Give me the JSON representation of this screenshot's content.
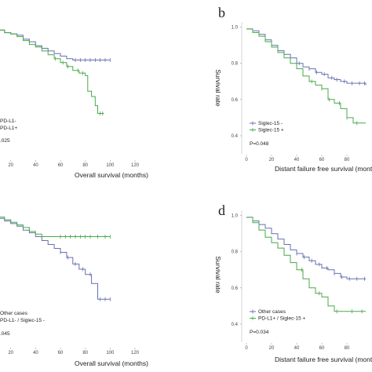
{
  "chart_data": [
    {
      "panel": "a",
      "type": "line",
      "panel_letter": "",
      "xlabel": "Overall survival (months)",
      "ylabel": "",
      "xlim": [
        0,
        120
      ],
      "ylim": [
        0,
        1
      ],
      "x_ticks": [
        "20",
        "40",
        "60",
        "80",
        "100",
        "120"
      ],
      "y_ticks": [],
      "series": [
        {
          "name": "PD-L1-",
          "color": "#6670b0",
          "x": [
            0,
            5,
            10,
            15,
            20,
            25,
            30,
            35,
            40,
            45,
            50,
            55,
            60,
            65,
            70,
            75,
            80,
            85,
            90,
            95,
            100
          ],
          "y": [
            0.99,
            0.97,
            0.95,
            0.93,
            0.92,
            0.91,
            0.88,
            0.86,
            0.83,
            0.81,
            0.79,
            0.77,
            0.75,
            0.73,
            0.72,
            0.72,
            0.72,
            0.72,
            0.72,
            0.72,
            0.72
          ],
          "censor_x": [
            72,
            76,
            80,
            84,
            88,
            92,
            96,
            100
          ]
        },
        {
          "name": "PD-L1+",
          "color": "#49a849",
          "x": [
            0,
            5,
            10,
            15,
            20,
            25,
            30,
            35,
            40,
            45,
            50,
            55,
            60,
            65,
            70,
            75,
            80,
            82,
            85,
            88,
            90,
            95
          ],
          "y": [
            0.99,
            0.97,
            0.95,
            0.93,
            0.92,
            0.9,
            0.87,
            0.84,
            0.82,
            0.79,
            0.76,
            0.73,
            0.7,
            0.67,
            0.64,
            0.62,
            0.6,
            0.48,
            0.44,
            0.37,
            0.31,
            0.31
          ],
          "censor_x": [
            56,
            62,
            66,
            74,
            78,
            92,
            94
          ]
        }
      ],
      "legend": [
        "PD-L1-",
        "PD-L1+"
      ],
      "annotation": ".025"
    },
    {
      "panel": "b",
      "type": "line",
      "panel_letter": "b",
      "xlabel": "Distant failure free survival (month",
      "ylabel": "Survival rate",
      "xlim": [
        0,
        120
      ],
      "ylim": [
        0,
        1
      ],
      "x_ticks": [
        "0",
        "20",
        "40",
        "60",
        "80"
      ],
      "y_ticks": [
        "0.4",
        "0.6",
        "0.8",
        "1.0"
      ],
      "series": [
        {
          "name": "Siglec-15 -",
          "color": "#6670b0",
          "x": [
            0,
            5,
            10,
            15,
            20,
            25,
            30,
            35,
            40,
            45,
            50,
            55,
            60,
            65,
            70,
            75,
            80,
            85,
            90,
            95
          ],
          "y": [
            0.99,
            0.98,
            0.96,
            0.93,
            0.9,
            0.87,
            0.85,
            0.83,
            0.8,
            0.78,
            0.77,
            0.75,
            0.74,
            0.72,
            0.71,
            0.7,
            0.69,
            0.69,
            0.69,
            0.68
          ],
          "censor_x": [
            42,
            50,
            56,
            62,
            68,
            72,
            78,
            84,
            90,
            94
          ]
        },
        {
          "name": "Siglec-15 +",
          "color": "#49a849",
          "x": [
            0,
            5,
            10,
            15,
            20,
            25,
            30,
            35,
            40,
            45,
            50,
            55,
            60,
            65,
            70,
            75,
            80,
            85,
            90,
            95
          ],
          "y": [
            0.99,
            0.97,
            0.95,
            0.92,
            0.89,
            0.86,
            0.83,
            0.8,
            0.77,
            0.73,
            0.7,
            0.68,
            0.66,
            0.6,
            0.58,
            0.55,
            0.5,
            0.47,
            0.47,
            0.47
          ],
          "censor_x": [
            52,
            60,
            66,
            74,
            80,
            88
          ]
        }
      ],
      "legend": [
        "Siglec-15 -",
        "Siglec-15 +"
      ],
      "annotation": "P=0.048"
    },
    {
      "panel": "c",
      "type": "line",
      "panel_letter": "",
      "xlabel": "Overall survival (months)",
      "ylabel": "",
      "xlim": [
        0,
        120
      ],
      "ylim": [
        0,
        1
      ],
      "x_ticks": [
        "20",
        "40",
        "60",
        "80",
        "100",
        "120"
      ],
      "y_ticks": [],
      "series": [
        {
          "name": "Other cases",
          "color": "#6670b0",
          "x": [
            0,
            5,
            10,
            15,
            20,
            25,
            30,
            35,
            40,
            45,
            50,
            55,
            60,
            65,
            70,
            75,
            80,
            85,
            88,
            90,
            95,
            100
          ],
          "y": [
            0.99,
            0.97,
            0.95,
            0.93,
            0.91,
            0.89,
            0.86,
            0.84,
            0.81,
            0.78,
            0.75,
            0.72,
            0.69,
            0.65,
            0.6,
            0.56,
            0.52,
            0.45,
            0.45,
            0.33,
            0.33,
            0.33
          ],
          "censor_x": [
            60,
            66,
            72,
            78,
            84,
            92,
            96,
            100
          ]
        },
        {
          "name": "PD-L1- / Siglec-15 -",
          "color": "#49a849",
          "x": [
            0,
            5,
            10,
            15,
            20,
            25,
            30,
            35,
            40,
            45,
            50,
            55,
            60,
            65,
            70,
            75,
            80,
            85,
            90,
            95,
            100
          ],
          "y": [
            0.99,
            0.98,
            0.96,
            0.94,
            0.92,
            0.9,
            0.88,
            0.85,
            0.83,
            0.81,
            0.81,
            0.81,
            0.81,
            0.81,
            0.81,
            0.81,
            0.81,
            0.81,
            0.81,
            0.81,
            0.81
          ],
          "censor_x": [
            60,
            64,
            68,
            72,
            76,
            80,
            84,
            90,
            96,
            100
          ]
        }
      ],
      "legend": [
        "Other cases",
        "PD-L1- / Siglec-15 -"
      ],
      "annotation": ".045"
    },
    {
      "panel": "d",
      "type": "line",
      "panel_letter": "d",
      "xlabel": "Distant failure free survival (month",
      "ylabel": "Survival rate",
      "xlim": [
        0,
        120
      ],
      "ylim": [
        0,
        1
      ],
      "x_ticks": [
        "0",
        "20",
        "40",
        "60",
        "80"
      ],
      "y_ticks": [
        "0.4",
        "0.6",
        "0.8",
        "1.0"
      ],
      "series": [
        {
          "name": "Other cases",
          "color": "#6670b0",
          "x": [
            0,
            5,
            10,
            15,
            20,
            25,
            30,
            35,
            40,
            45,
            50,
            55,
            60,
            65,
            70,
            75,
            80,
            85,
            90,
            95
          ],
          "y": [
            0.99,
            0.97,
            0.95,
            0.93,
            0.9,
            0.87,
            0.84,
            0.81,
            0.79,
            0.77,
            0.75,
            0.73,
            0.71,
            0.7,
            0.68,
            0.66,
            0.65,
            0.65,
            0.65,
            0.65
          ],
          "censor_x": [
            40,
            46,
            52,
            58,
            64,
            70,
            76,
            82,
            88,
            94
          ]
        },
        {
          "name": "PD-L1+ / Siglec-15 +",
          "color": "#49a849",
          "x": [
            0,
            5,
            10,
            15,
            20,
            25,
            30,
            35,
            40,
            45,
            50,
            55,
            60,
            65,
            70,
            75,
            80,
            85,
            90,
            95
          ],
          "y": [
            0.99,
            0.96,
            0.92,
            0.88,
            0.85,
            0.82,
            0.78,
            0.74,
            0.7,
            0.65,
            0.6,
            0.57,
            0.55,
            0.5,
            0.47,
            0.47,
            0.47,
            0.47,
            0.47,
            0.47
          ],
          "censor_x": [
            44,
            58,
            72,
            84,
            92
          ]
        }
      ],
      "legend": [
        "Other cases",
        "PD-L1+ / Siglec-15 +"
      ],
      "annotation": "P=0.034"
    }
  ]
}
